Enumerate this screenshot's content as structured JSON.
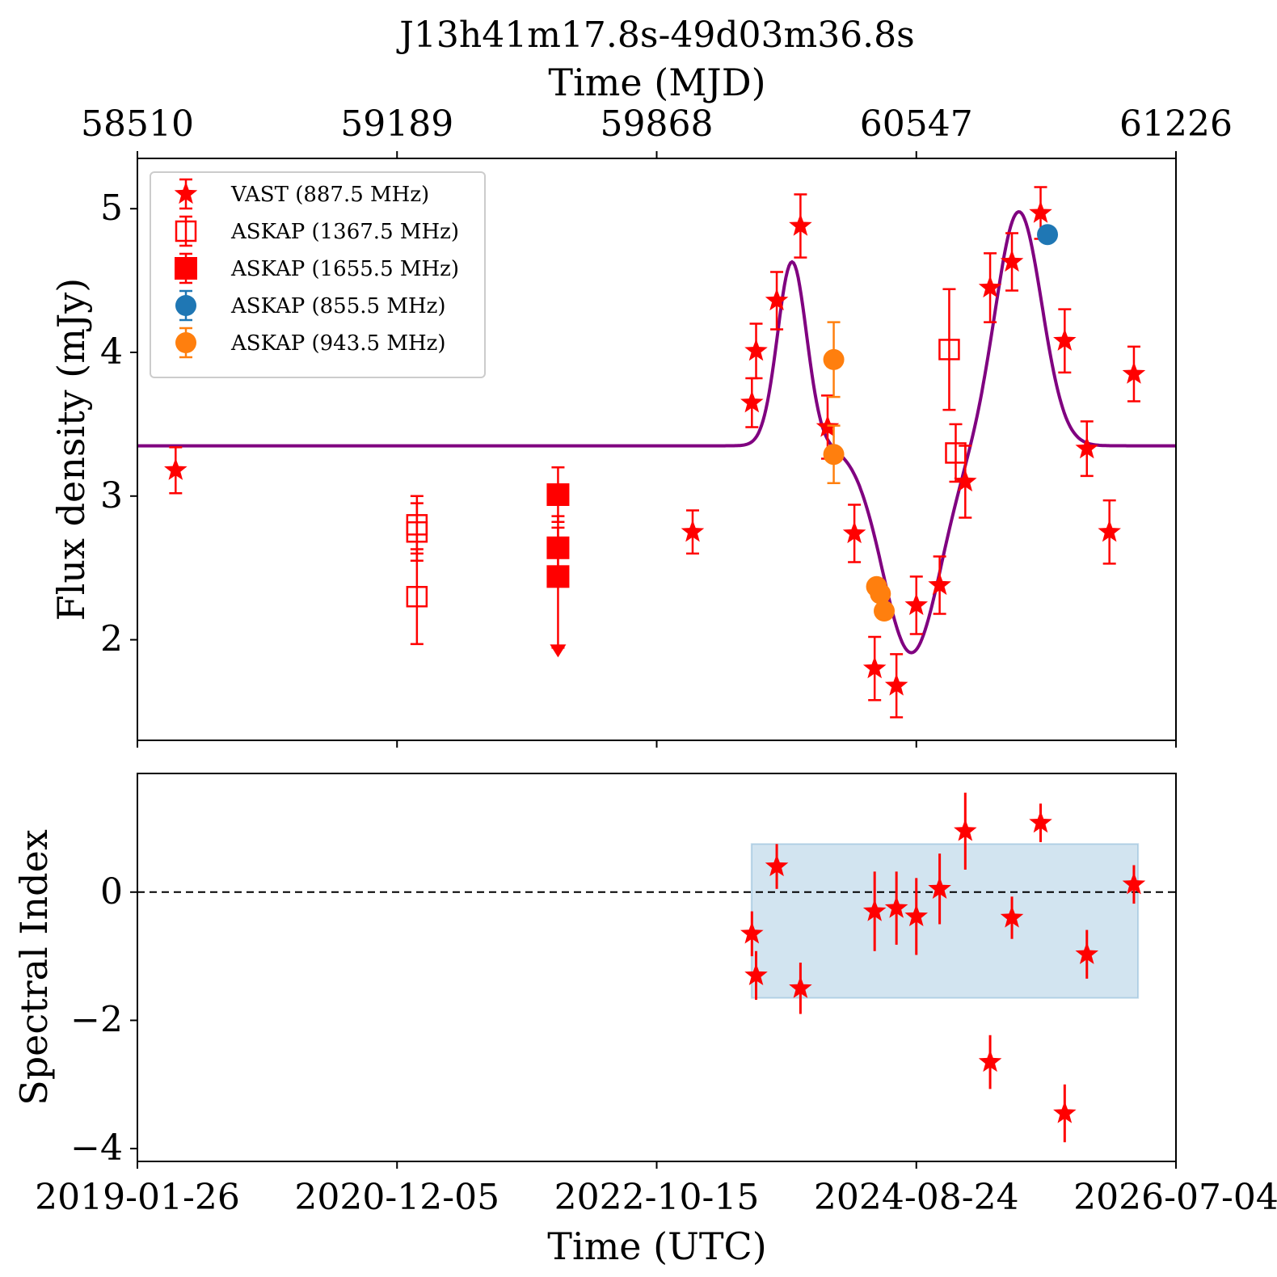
{
  "figure": {
    "title": "J13h41m17.8s-49d03m36.8s",
    "top_xlabel": "Time (MJD)",
    "bottom_xlabel": "Time (UTC)"
  },
  "chart_data": [
    {
      "type": "scatter",
      "panel": "flux",
      "title": "J13h41m17.8s-49d03m36.8s",
      "xlabel": "Time (MJD)",
      "ylabel": "Flux density (mJy)",
      "xlim": [
        58510,
        61226
      ],
      "ylim": [
        1.3,
        5.35
      ],
      "xticks": [
        58510,
        59189,
        59868,
        60547,
        61226
      ],
      "xtick_labels": [
        "58510",
        "59189",
        "59868",
        "60547",
        "61226"
      ],
      "yticks": [
        2,
        3,
        4,
        5
      ],
      "ytick_labels": [
        "2",
        "3",
        "4",
        "5"
      ],
      "grid": false,
      "legend_position": "top-left",
      "series": [
        {
          "name": "VAST (887.5 MHz)",
          "marker": "star",
          "color": "#ff0000",
          "points": [
            {
              "x": 58610,
              "y": 3.18,
              "err": 0.16
            },
            {
              "x": 59962,
              "y": 2.75,
              "err": 0.15
            },
            {
              "x": 60117,
              "y": 3.65,
              "err": 0.17
            },
            {
              "x": 60128,
              "y": 4.01,
              "err": 0.19
            },
            {
              "x": 60182,
              "y": 4.36,
              "err": 0.2
            },
            {
              "x": 60244,
              "y": 4.88,
              "err": 0.22
            },
            {
              "x": 60315,
              "y": 3.48,
              "err": 0.22
            },
            {
              "x": 60385,
              "y": 2.74,
              "err": 0.2
            },
            {
              "x": 60438,
              "y": 1.8,
              "err": 0.22
            },
            {
              "x": 60495,
              "y": 1.68,
              "err": 0.22
            },
            {
              "x": 60547,
              "y": 2.24,
              "err": 0.2
            },
            {
              "x": 60608,
              "y": 2.38,
              "err": 0.2
            },
            {
              "x": 60675,
              "y": 3.1,
              "err": 0.25
            },
            {
              "x": 60740,
              "y": 4.45,
              "err": 0.24
            },
            {
              "x": 60797,
              "y": 4.63,
              "err": 0.2
            },
            {
              "x": 60872,
              "y": 4.97,
              "err": 0.18
            },
            {
              "x": 60935,
              "y": 4.08,
              "err": 0.22
            },
            {
              "x": 60993,
              "y": 3.33,
              "err": 0.19
            },
            {
              "x": 61052,
              "y": 2.75,
              "err": 0.22
            },
            {
              "x": 61116,
              "y": 3.85,
              "err": 0.19
            }
          ]
        },
        {
          "name": "ASKAP (1367.5 MHz)",
          "marker": "open-square",
          "color": "#ff0000",
          "points": [
            {
              "x": 59241,
              "y": 2.8,
              "err": 0.2
            },
            {
              "x": 59241,
              "y": 2.75,
              "err": 0.2
            },
            {
              "x": 59241,
              "y": 2.3,
              "err": 0.33
            },
            {
              "x": 60633,
              "y": 4.02,
              "err": 0.42
            },
            {
              "x": 60650,
              "y": 3.3,
              "err": 0.2
            }
          ]
        },
        {
          "name": "ASKAP (1655.5 MHz)",
          "marker": "filled-square",
          "color": "#ff0000",
          "points": [
            {
              "x": 59610,
              "y": 3.01,
              "err": 0.19
            },
            {
              "x": 59610,
              "y": 2.64,
              "err": 0.22
            },
            {
              "x": 59610,
              "y": 2.44,
              "err": 0.34,
              "upper_limit_to": 1.9
            }
          ]
        },
        {
          "name": "ASKAP (855.5 MHz)",
          "marker": "circle",
          "color": "#1f77b4",
          "points": [
            {
              "x": 60890,
              "y": 4.82,
              "err": 0.04
            }
          ]
        },
        {
          "name": "ASKAP (943.5 MHz)",
          "marker": "circle",
          "color": "#ff7f0e",
          "points": [
            {
              "x": 60331,
              "y": 3.95,
              "err": 0.26
            },
            {
              "x": 60331,
              "y": 3.29,
              "err": 0.2
            },
            {
              "x": 60443,
              "y": 2.37,
              "err": 0.04
            },
            {
              "x": 60453,
              "y": 2.32,
              "err": 0.04
            },
            {
              "x": 60463,
              "y": 2.2,
              "err": 0.04
            }
          ]
        },
        {
          "name": "",
          "type": "line",
          "color": "#800080",
          "description_of_model": "constant baseline with two gaussian peaks and one trough",
          "baseline": 3.35,
          "components": [
            {
              "center": 60222,
              "amplitude": 1.28,
              "sigma": 38
            },
            {
              "center": 60534,
              "amplitude": -1.44,
              "sigma": 75
            },
            {
              "center": 60815,
              "amplitude": 1.63,
              "sigma": 60
            }
          ],
          "x_range": [
            58510,
            61226
          ]
        }
      ]
    },
    {
      "type": "scatter",
      "panel": "spectral-index",
      "xlabel": "Time (UTC)",
      "ylabel": "Spectral Index",
      "xlim": [
        58510,
        61226
      ],
      "ylim": [
        -4.2,
        1.85
      ],
      "xticks": [
        58510,
        59189,
        59868,
        60547,
        61226
      ],
      "xtick_labels": [
        "2019-01-26",
        "2020-12-05",
        "2022-10-15",
        "2024-08-24",
        "2026-07-04"
      ],
      "yticks": [
        -4,
        -2,
        0
      ],
      "ytick_labels": [
        "−4",
        "−2",
        "0"
      ],
      "grid": false,
      "reference_line_y": 0,
      "band": {
        "x": [
          60116,
          61127
        ],
        "y": [
          -1.65,
          0.75
        ],
        "color": "#1f77b4"
      },
      "series": [
        {
          "name": "",
          "marker": "star",
          "color": "#ff0000",
          "points": [
            {
              "x": 60117,
              "y": -0.65,
              "err": 0.35
            },
            {
              "x": 60128,
              "y": -1.3,
              "err": 0.38
            },
            {
              "x": 60182,
              "y": 0.4,
              "err": 0.35
            },
            {
              "x": 60244,
              "y": -1.5,
              "err": 0.4
            },
            {
              "x": 60438,
              "y": -0.3,
              "err": 0.62
            },
            {
              "x": 60495,
              "y": -0.25,
              "err": 0.57
            },
            {
              "x": 60547,
              "y": -0.38,
              "err": 0.6
            },
            {
              "x": 60608,
              "y": 0.05,
              "err": 0.55
            },
            {
              "x": 60675,
              "y": 0.95,
              "err": 0.6
            },
            {
              "x": 60740,
              "y": -2.65,
              "err": 0.42
            },
            {
              "x": 60797,
              "y": -0.4,
              "err": 0.33
            },
            {
              "x": 60872,
              "y": 1.08,
              "err": 0.3
            },
            {
              "x": 60935,
              "y": -3.45,
              "err": 0.45
            },
            {
              "x": 60993,
              "y": -0.97,
              "err": 0.38
            },
            {
              "x": 61116,
              "y": 0.12,
              "err": 0.3
            }
          ]
        }
      ]
    }
  ]
}
